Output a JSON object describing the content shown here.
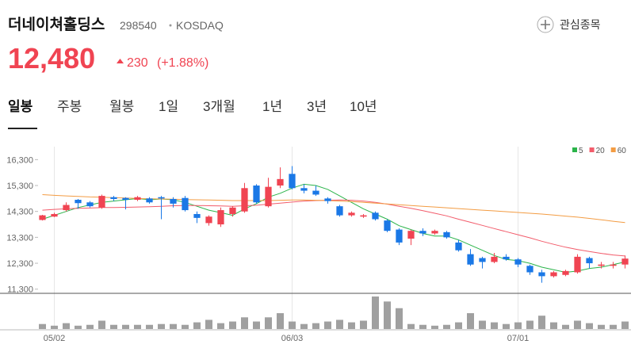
{
  "header": {
    "name": "더네이쳐홀딩스",
    "code": "298540",
    "market": "KOSDAQ",
    "button": "관심종목",
    "price": "12,480",
    "change": "230",
    "change_pct": "(+1.88%)"
  },
  "tabs": [
    "일봉",
    "주봉",
    "월봉",
    "1일",
    "3개월",
    "1년",
    "3년",
    "10년"
  ],
  "chart_data": {
    "type": "candlestick",
    "categories": [
      null,
      "05/02",
      null,
      null,
      null,
      null,
      null,
      null,
      null,
      null,
      null,
      null,
      null,
      null,
      null,
      null,
      null,
      null,
      null,
      null,
      null,
      "06/03",
      null,
      null,
      null,
      null,
      null,
      null,
      null,
      null,
      null,
      null,
      null,
      null,
      null,
      null,
      null,
      null,
      null,
      null,
      "07/01",
      null,
      null,
      null,
      null,
      null,
      null,
      null,
      null,
      null
    ],
    "open": [
      13970,
      14100,
      14350,
      14750,
      14650,
      14450,
      14850,
      14820,
      14750,
      14800,
      14850,
      14780,
      14820,
      14200,
      13850,
      13800,
      14200,
      14300,
      15300,
      14500,
      15300,
      15750,
      15200,
      15100,
      14800,
      14500,
      14150,
      14100,
      14250,
      13950,
      13600,
      13250,
      13550,
      13450,
      13500,
      13100,
      12650,
      12500,
      12350,
      12550,
      12450,
      12200,
      11950,
      11800,
      11850,
      11950,
      12500,
      12200,
      12200,
      12250
    ],
    "high": [
      14170,
      14250,
      14650,
      14780,
      14700,
      14950,
      14900,
      14850,
      14900,
      14850,
      14900,
      14850,
      14900,
      14300,
      14150,
      14450,
      14500,
      15400,
      15350,
      15600,
      16000,
      16050,
      15350,
      15300,
      14850,
      14550,
      14300,
      14200,
      14300,
      14000,
      13650,
      13600,
      13650,
      13600,
      13550,
      13200,
      12850,
      12550,
      12700,
      12650,
      12500,
      12250,
      12050,
      12000,
      12050,
      12650,
      12550,
      12350,
      12350,
      12600
    ],
    "low": [
      13950,
      14080,
      14300,
      14400,
      14450,
      14400,
      14700,
      14380,
      14700,
      14600,
      14000,
      14450,
      14300,
      13850,
      13750,
      13700,
      14100,
      14250,
      14600,
      14450,
      15200,
      15150,
      15000,
      14900,
      14600,
      14100,
      14100,
      14050,
      13950,
      13500,
      13000,
      13000,
      13350,
      13400,
      13250,
      12750,
      12200,
      12100,
      12300,
      12400,
      12150,
      11850,
      11550,
      11750,
      11800,
      11900,
      12100,
      12100,
      12100,
      12100
    ],
    "close": [
      14150,
      14200,
      14550,
      14620,
      14500,
      14900,
      14780,
      14750,
      14850,
      14650,
      14800,
      14600,
      14350,
      14050,
      14100,
      14350,
      14450,
      15200,
      14650,
      15250,
      15550,
      15200,
      15100,
      14950,
      14700,
      14150,
      14250,
      14150,
      14000,
      13550,
      13100,
      13550,
      13450,
      13550,
      13300,
      12800,
      12250,
      12350,
      12550,
      12450,
      12250,
      11950,
      11800,
      11950,
      12000,
      12550,
      12300,
      12250,
      12250,
      12480
    ],
    "volume": [
      6,
      4,
      7,
      4,
      5,
      10,
      5,
      5,
      5,
      5,
      6,
      6,
      5,
      8,
      11,
      7,
      9,
      14,
      9,
      14,
      19,
      9,
      6,
      7,
      9,
      11,
      8,
      10,
      39,
      33,
      25,
      6,
      5,
      4,
      5,
      8,
      19,
      10,
      8,
      6,
      8,
      10,
      16,
      8,
      5,
      10,
      7,
      5,
      5,
      9
    ],
    "up_color": "#f04452",
    "down_color": "#1a78e6",
    "volume_color": "#a0a0a0",
    "series": [
      {
        "name": "5",
        "color": "#2bb44a",
        "values": [
          14000,
          14150,
          14300,
          14450,
          14550,
          14650,
          14700,
          14750,
          14800,
          14750,
          14780,
          14750,
          14650,
          14500,
          14350,
          14250,
          14150,
          14400,
          14600,
          14850,
          15000,
          15200,
          15350,
          15300,
          15150,
          14900,
          14650,
          14400,
          14200,
          14000,
          13750,
          13600,
          13450,
          13350,
          13350,
          13200,
          13000,
          12800,
          12600,
          12450,
          12400,
          12300,
          12150,
          12050,
          11950,
          12000,
          12100,
          12150,
          12250,
          12350
        ]
      },
      {
        "name": "20",
        "color": "#f25c6b",
        "values": [
          14350,
          14380,
          14400,
          14420,
          14430,
          14450,
          14450,
          14460,
          14470,
          14480,
          14500,
          14520,
          14530,
          14530,
          14520,
          14510,
          14500,
          14520,
          14540,
          14580,
          14620,
          14660,
          14700,
          14720,
          14730,
          14740,
          14730,
          14700,
          14650,
          14580,
          14500,
          14420,
          14330,
          14230,
          14130,
          14000,
          13880,
          13760,
          13640,
          13520,
          13400,
          13280,
          13150,
          13030,
          12920,
          12830,
          12750,
          12680,
          12620,
          12580
        ]
      },
      {
        "name": "60",
        "color": "#f39c43",
        "values": [
          14950,
          14920,
          14900,
          14880,
          14860,
          14850,
          14830,
          14820,
          14800,
          14790,
          14780,
          14770,
          14760,
          14750,
          14740,
          14730,
          14720,
          14720,
          14720,
          14720,
          14730,
          14740,
          14740,
          14730,
          14720,
          14700,
          14680,
          14650,
          14620,
          14590,
          14560,
          14530,
          14500,
          14470,
          14440,
          14410,
          14380,
          14350,
          14320,
          14290,
          14260,
          14230,
          14200,
          14160,
          14120,
          14080,
          14030,
          13980,
          13920,
          13870
        ]
      }
    ],
    "ylim": [
      11200,
      16800
    ],
    "yticks": [
      {
        "value": 11300,
        "label": "11,300"
      },
      {
        "value": 12300,
        "label": "12,300"
      },
      {
        "value": 13300,
        "label": "13,300"
      },
      {
        "value": 14300,
        "label": "14,300"
      },
      {
        "value": 15300,
        "label": "15,300"
      },
      {
        "value": 16300,
        "label": "16,300"
      }
    ],
    "grid": true
  }
}
